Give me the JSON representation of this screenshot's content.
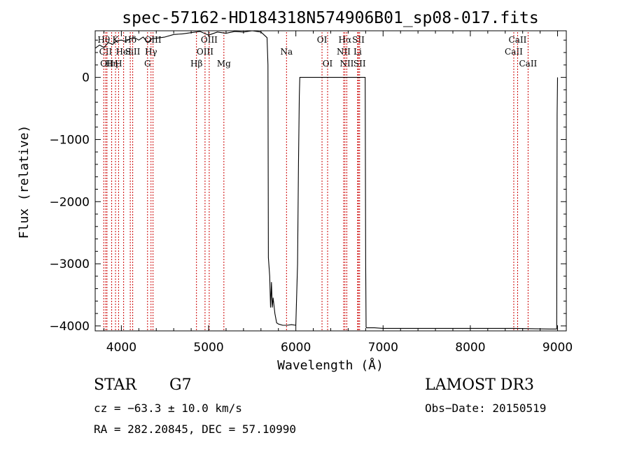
{
  "chart_data": {
    "type": "line",
    "title": "spec-57162-HD184318N574906B01_sp08-017.fits",
    "xlabel": "Wavelength (Å)",
    "ylabel": "Flux (relative)",
    "xlim": [
      3700,
      9100
    ],
    "ylim": [
      -4080,
      750
    ],
    "xticks": [
      4000,
      5000,
      6000,
      7000,
      8000,
      9000
    ],
    "yticks": [
      0,
      -1000,
      -2000,
      -3000,
      -4000
    ],
    "ytick_labels": [
      "0",
      "−1000",
      "−2000",
      "−3000",
      "−4000"
    ],
    "grid": false,
    "line_color": "#000000",
    "marker_color": "#cc0000",
    "series": [
      {
        "x": [
          3700,
          3750,
          3800,
          3850,
          3900,
          3950,
          4000,
          4050,
          4100,
          4150,
          4200,
          4250,
          4300,
          4350,
          4400,
          4500,
          4600,
          4700,
          4800,
          4900,
          5000,
          5100,
          5200,
          5300,
          5400,
          5500,
          5600,
          5670,
          5680,
          5685,
          5700,
          5710,
          5720,
          5730,
          5740,
          5760,
          5780,
          5800,
          5850,
          5900,
          5950,
          6000,
          6020,
          6030,
          6040,
          6045,
          6050,
          6060,
          6100,
          6200,
          6300,
          6400,
          6500,
          6600,
          6700,
          6790,
          6795,
          6800,
          6805,
          6810,
          6900,
          7000,
          7500,
          8000,
          8500,
          8900,
          8990,
          8995,
          9000
        ],
        "y": [
          470,
          520,
          480,
          560,
          530,
          590,
          600,
          580,
          620,
          640,
          600,
          650,
          560,
          620,
          630,
          650,
          690,
          700,
          720,
          740,
          680,
          730,
          710,
          740,
          730,
          750,
          730,
          640,
          200,
          -2900,
          -3200,
          -3700,
          -3300,
          -3700,
          -3550,
          -3800,
          -3950,
          -3970,
          -3990,
          -3990,
          -3980,
          -3990,
          -3000,
          -1400,
          -300,
          0,
          0,
          0,
          0,
          0,
          0,
          0,
          0,
          0,
          0,
          0,
          0,
          -3000,
          -4020,
          -4030,
          -4030,
          -4040,
          -4040,
          -4040,
          -4040,
          -4050,
          -4050,
          -600,
          0
        ]
      }
    ],
    "line_markers": [
      {
        "w": 3798,
        "labels": [
          "Hθ"
        ],
        "row": 0
      },
      {
        "w": 3820,
        "labels": [
          "CII"
        ],
        "row": 1
      },
      {
        "w": 3835,
        "labels": [
          "OII"
        ],
        "row": 2
      },
      {
        "w": 3889,
        "labels": [
          "Hη"
        ],
        "row": 2
      },
      {
        "w": 3933,
        "labels": [
          "K"
        ],
        "row": 0
      },
      {
        "w": 3968,
        "labels": [
          "H"
        ],
        "row": 2
      },
      {
        "w": 4026,
        "labels": [
          "HeI"
        ],
        "row": 1
      },
      {
        "w": 4102,
        "labels": [
          "Hδ"
        ],
        "row": 0
      },
      {
        "w": 4130,
        "labels": [
          "SiII"
        ],
        "row": 1
      },
      {
        "w": 4300,
        "labels": [
          "G"
        ],
        "row": 2
      },
      {
        "w": 4340,
        "labels": [
          "Hγ"
        ],
        "row": 1
      },
      {
        "w": 4363,
        "labels": [
          "OIII"
        ],
        "row": 0
      },
      {
        "w": 4861,
        "labels": [
          "Hβ"
        ],
        "row": 2
      },
      {
        "w": 4959,
        "labels": [
          "OIII"
        ],
        "row": 1
      },
      {
        "w": 5007,
        "labels": [
          "OIII"
        ],
        "row": 0
      },
      {
        "w": 5175,
        "labels": [
          "Mg"
        ],
        "row": 2
      },
      {
        "w": 5893,
        "labels": [
          "Na"
        ],
        "row": 1
      },
      {
        "w": 6300,
        "labels": [
          "OI"
        ],
        "row": 0
      },
      {
        "w": 6364,
        "labels": [
          "OI"
        ],
        "row": 2
      },
      {
        "w": 6548,
        "labels": [
          "NII"
        ],
        "row": 1
      },
      {
        "w": 6563,
        "labels": [
          "Hα"
        ],
        "row": 0
      },
      {
        "w": 6584,
        "labels": [
          "NII"
        ],
        "row": 2
      },
      {
        "w": 6708,
        "labels": [
          "Li"
        ],
        "row": 1
      },
      {
        "w": 6717,
        "labels": [
          "SII"
        ],
        "row": 0
      },
      {
        "w": 6731,
        "labels": [
          "SII"
        ],
        "row": 2
      },
      {
        "w": 8498,
        "labels": [
          "CaII"
        ],
        "row": 1
      },
      {
        "w": 8542,
        "labels": [
          "CaII"
        ],
        "row": 0
      },
      {
        "w": 8662,
        "labels": [
          "CaII"
        ],
        "row": 2
      }
    ]
  },
  "info": {
    "object_type": "STAR",
    "subclass": "G7",
    "redshift": "cz = −63.3 ± 10.0 km/s",
    "coords": "RA = 282.20845, DEC =  57.10990",
    "survey": "LAMOST DR3",
    "obs_date": "Obs−Date: 20150519"
  }
}
